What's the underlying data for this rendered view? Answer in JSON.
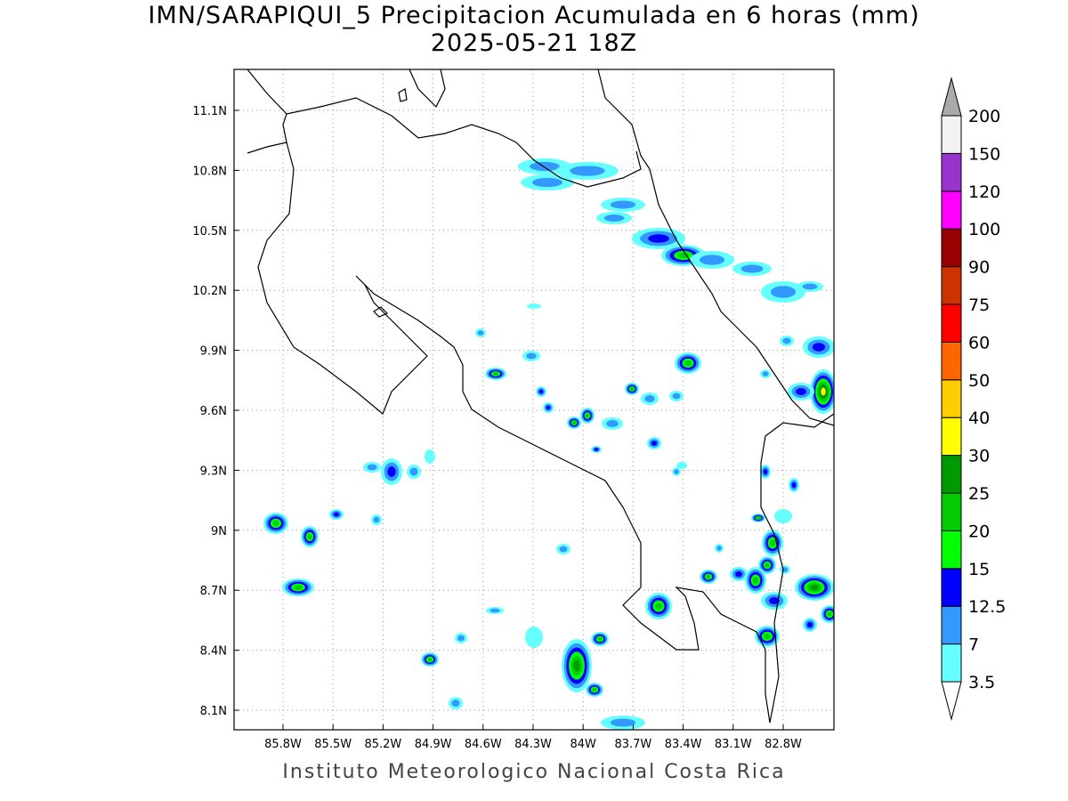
{
  "title": {
    "line1": "IMN/SARAPIQUI_5 Precipitacion Acumulada en 6 horas (mm)",
    "line2": "2025-05-21 18Z"
  },
  "credit": "Instituto Meteorologico Nacional Costa Rica",
  "axes": {
    "lon_labels": [
      "85.8W",
      "85.5W",
      "85.2W",
      "84.9W",
      "84.6W",
      "84.3W",
      "84W",
      "83.7W",
      "83.4W",
      "83.1W",
      "82.8W"
    ],
    "lat_labels": [
      "11.1N",
      "10.8N",
      "10.5N",
      "10.2N",
      "9.9N",
      "9.6N",
      "9.3N",
      "9N",
      "8.7N",
      "8.4N",
      "8.1N"
    ]
  },
  "colorbar": {
    "levels": [
      "3.5",
      "7",
      "12.5",
      "15",
      "20",
      "25",
      "30",
      "40",
      "50",
      "60",
      "75",
      "90",
      "100",
      "120",
      "150",
      "200"
    ],
    "colors": [
      "#66ffff",
      "#3399ff",
      "#0000ff",
      "#00ff00",
      "#00cc00",
      "#009900",
      "#ffff00",
      "#ffcc00",
      "#ff6600",
      "#ff0000",
      "#cc3300",
      "#990000",
      "#ff00ff",
      "#9933cc",
      "#f2f2f2"
    ],
    "over_color": "#aaaaaa",
    "under_color": "#ffffff"
  }
}
